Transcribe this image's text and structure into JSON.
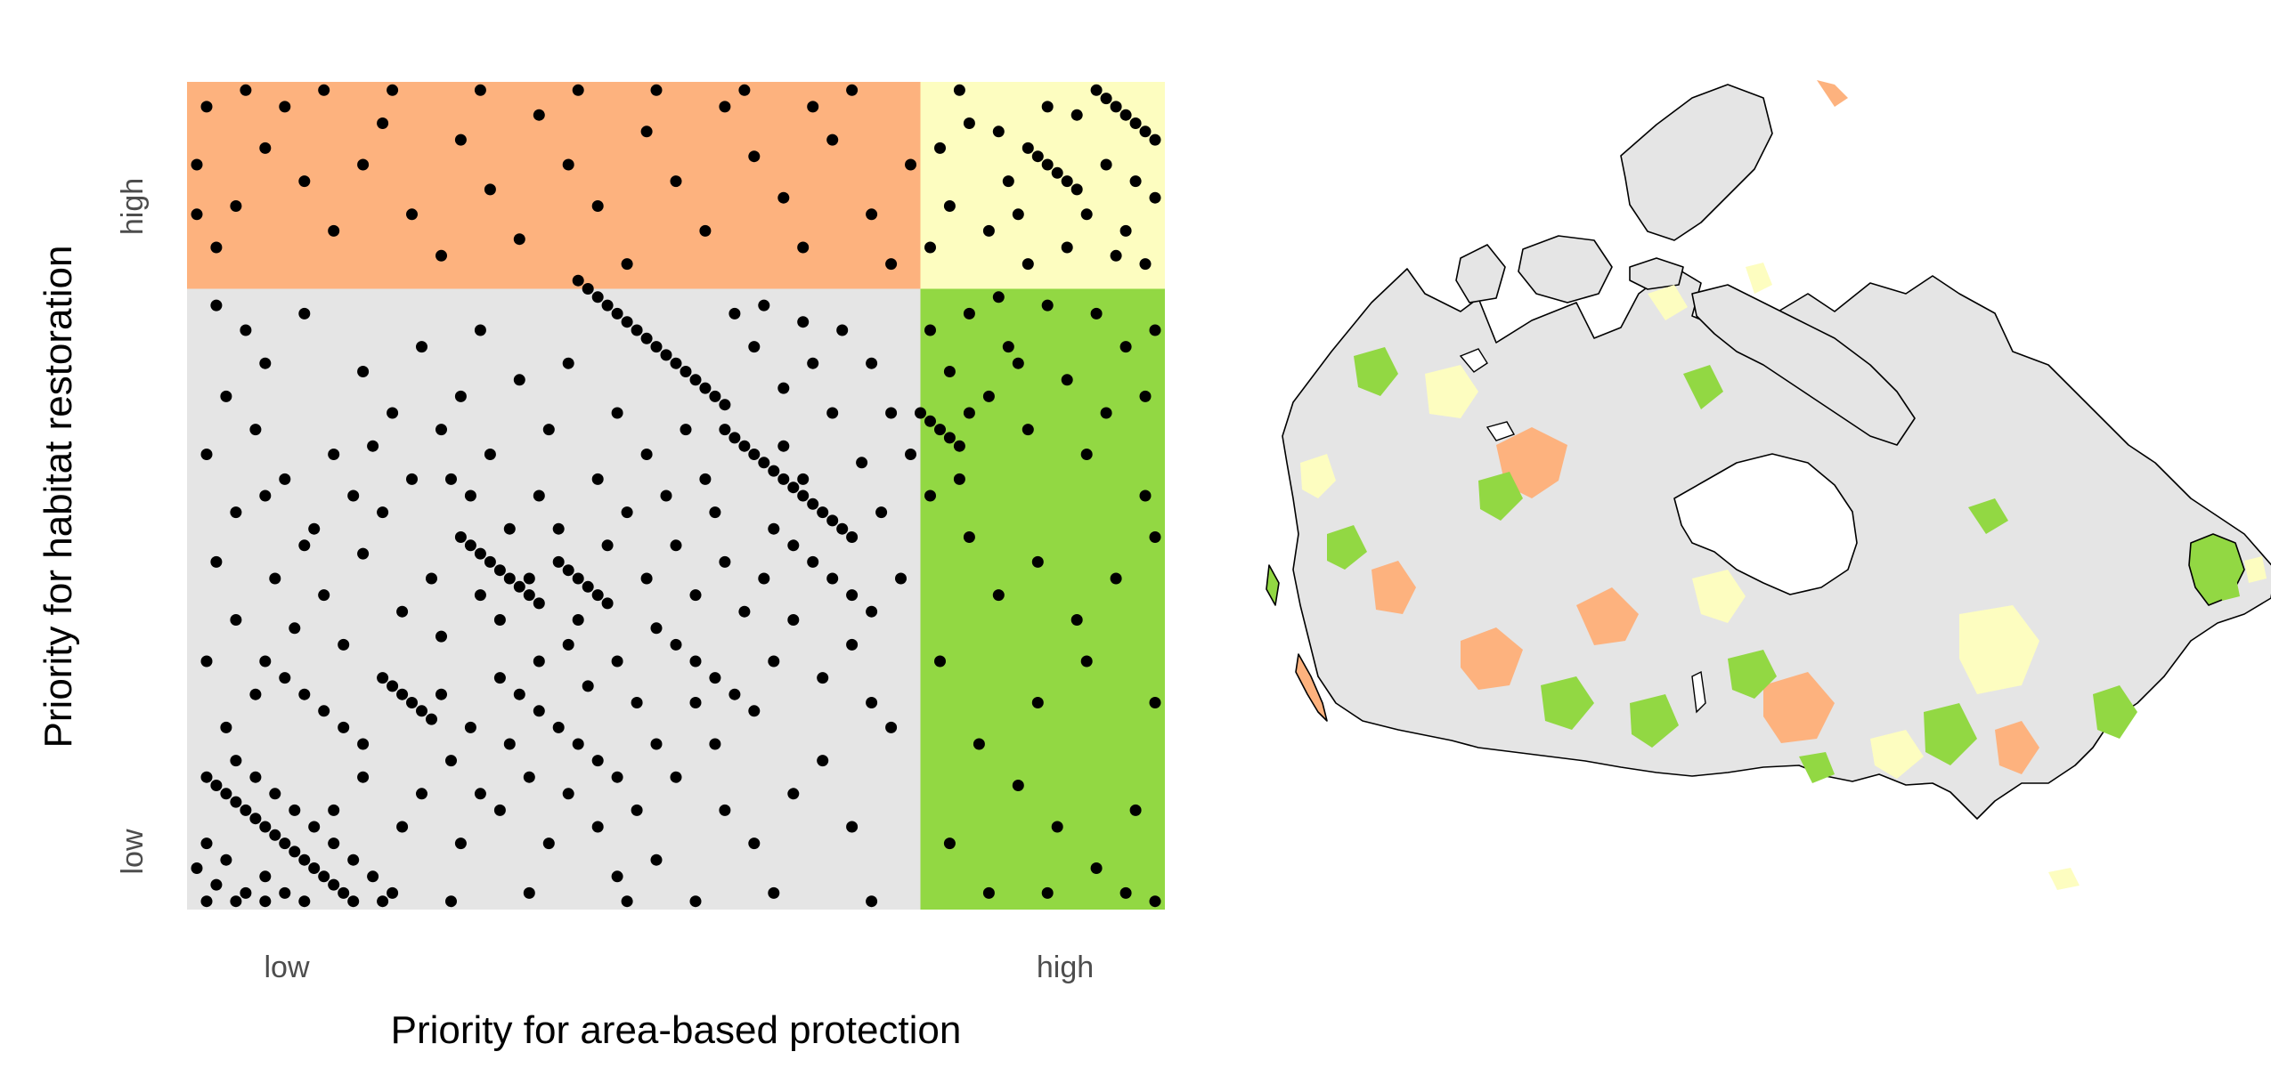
{
  "chart_data": {
    "type": "scatter",
    "title": "",
    "xlabel": "Priority for area-based protection",
    "ylabel": "Priority for habitat restoration",
    "x_tick_labels": [
      "low",
      "high"
    ],
    "y_tick_labels": [
      "low",
      "high"
    ],
    "xlim": [
      0,
      1
    ],
    "ylim": [
      0,
      1
    ],
    "x_threshold": 0.75,
    "y_threshold": 0.75,
    "legend": "none",
    "grid": false,
    "quadrants": [
      {
        "id": "high-restoration-low-protection",
        "color": "#FDB27E"
      },
      {
        "id": "high-restoration-high-protection",
        "color": "#FDFDC0"
      },
      {
        "id": "low-restoration-high-protection",
        "color": "#92D843"
      },
      {
        "id": "low-restoration-low-protection",
        "color": "#E5E5E5"
      }
    ],
    "point_color": "#000000",
    "points": [
      [
        0.02,
        0.16
      ],
      [
        0.03,
        0.15
      ],
      [
        0.04,
        0.14
      ],
      [
        0.05,
        0.13
      ],
      [
        0.06,
        0.12
      ],
      [
        0.07,
        0.11
      ],
      [
        0.08,
        0.1
      ],
      [
        0.09,
        0.09
      ],
      [
        0.1,
        0.08
      ],
      [
        0.11,
        0.07
      ],
      [
        0.12,
        0.06
      ],
      [
        0.13,
        0.05
      ],
      [
        0.14,
        0.04
      ],
      [
        0.15,
        0.03
      ],
      [
        0.16,
        0.02
      ],
      [
        0.17,
        0.01
      ],
      [
        0.05,
        0.18
      ],
      [
        0.07,
        0.16
      ],
      [
        0.09,
        0.14
      ],
      [
        0.11,
        0.12
      ],
      [
        0.13,
        0.1
      ],
      [
        0.15,
        0.08
      ],
      [
        0.17,
        0.06
      ],
      [
        0.19,
        0.04
      ],
      [
        0.21,
        0.02
      ],
      [
        0.01,
        0.05
      ],
      [
        0.02,
        0.08
      ],
      [
        0.03,
        0.03
      ],
      [
        0.04,
        0.06
      ],
      [
        0.06,
        0.02
      ],
      [
        0.08,
        0.04
      ],
      [
        0.1,
        0.02
      ],
      [
        0.02,
        0.01
      ],
      [
        0.05,
        0.01
      ],
      [
        0.08,
        0.01
      ],
      [
        0.12,
        0.01
      ],
      [
        0.2,
        0.01
      ],
      [
        0.27,
        0.01
      ],
      [
        0.35,
        0.02
      ],
      [
        0.45,
        0.01
      ],
      [
        0.52,
        0.01
      ],
      [
        0.6,
        0.02
      ],
      [
        0.7,
        0.01
      ],
      [
        0.4,
        0.76
      ],
      [
        0.41,
        0.75
      ],
      [
        0.42,
        0.74
      ],
      [
        0.43,
        0.73
      ],
      [
        0.44,
        0.72
      ],
      [
        0.45,
        0.71
      ],
      [
        0.46,
        0.7
      ],
      [
        0.47,
        0.69
      ],
      [
        0.48,
        0.68
      ],
      [
        0.49,
        0.67
      ],
      [
        0.5,
        0.66
      ],
      [
        0.51,
        0.65
      ],
      [
        0.52,
        0.64
      ],
      [
        0.53,
        0.63
      ],
      [
        0.54,
        0.62
      ],
      [
        0.55,
        0.61
      ],
      [
        0.55,
        0.58
      ],
      [
        0.56,
        0.57
      ],
      [
        0.57,
        0.56
      ],
      [
        0.58,
        0.55
      ],
      [
        0.59,
        0.54
      ],
      [
        0.6,
        0.53
      ],
      [
        0.61,
        0.52
      ],
      [
        0.62,
        0.51
      ],
      [
        0.63,
        0.5
      ],
      [
        0.64,
        0.49
      ],
      [
        0.65,
        0.48
      ],
      [
        0.66,
        0.47
      ],
      [
        0.67,
        0.46
      ],
      [
        0.68,
        0.45
      ],
      [
        0.28,
        0.45
      ],
      [
        0.29,
        0.44
      ],
      [
        0.3,
        0.43
      ],
      [
        0.31,
        0.42
      ],
      [
        0.32,
        0.41
      ],
      [
        0.33,
        0.4
      ],
      [
        0.34,
        0.39
      ],
      [
        0.35,
        0.38
      ],
      [
        0.36,
        0.37
      ],
      [
        0.2,
        0.28
      ],
      [
        0.21,
        0.27
      ],
      [
        0.22,
        0.26
      ],
      [
        0.23,
        0.25
      ],
      [
        0.24,
        0.24
      ],
      [
        0.25,
        0.23
      ],
      [
        0.38,
        0.42
      ],
      [
        0.39,
        0.41
      ],
      [
        0.4,
        0.4
      ],
      [
        0.41,
        0.39
      ],
      [
        0.42,
        0.38
      ],
      [
        0.43,
        0.37
      ],
      [
        0.08,
        0.3
      ],
      [
        0.1,
        0.28
      ],
      [
        0.12,
        0.26
      ],
      [
        0.14,
        0.24
      ],
      [
        0.16,
        0.22
      ],
      [
        0.18,
        0.2
      ],
      [
        0.34,
        0.26
      ],
      [
        0.36,
        0.24
      ],
      [
        0.38,
        0.22
      ],
      [
        0.4,
        0.2
      ],
      [
        0.42,
        0.18
      ],
      [
        0.44,
        0.16
      ],
      [
        0.6,
        0.46
      ],
      [
        0.62,
        0.44
      ],
      [
        0.64,
        0.42
      ],
      [
        0.66,
        0.4
      ],
      [
        0.68,
        0.38
      ],
      [
        0.7,
        0.36
      ],
      [
        0.48,
        0.34
      ],
      [
        0.5,
        0.32
      ],
      [
        0.52,
        0.3
      ],
      [
        0.54,
        0.28
      ],
      [
        0.56,
        0.26
      ],
      [
        0.86,
        0.92
      ],
      [
        0.87,
        0.91
      ],
      [
        0.88,
        0.9
      ],
      [
        0.89,
        0.89
      ],
      [
        0.9,
        0.88
      ],
      [
        0.91,
        0.87
      ],
      [
        0.93,
        0.99
      ],
      [
        0.94,
        0.98
      ],
      [
        0.95,
        0.97
      ],
      [
        0.96,
        0.96
      ],
      [
        0.97,
        0.95
      ],
      [
        0.98,
        0.94
      ],
      [
        0.99,
        0.93
      ],
      [
        0.75,
        0.6
      ],
      [
        0.76,
        0.59
      ],
      [
        0.77,
        0.58
      ],
      [
        0.78,
        0.57
      ],
      [
        0.79,
        0.56
      ],
      [
        0.25,
        0.4
      ],
      [
        0.3,
        0.38
      ],
      [
        0.33,
        0.46
      ],
      [
        0.36,
        0.5
      ],
      [
        0.27,
        0.52
      ],
      [
        0.31,
        0.55
      ],
      [
        0.2,
        0.48
      ],
      [
        0.18,
        0.43
      ],
      [
        0.22,
        0.36
      ],
      [
        0.26,
        0.33
      ],
      [
        0.14,
        0.38
      ],
      [
        0.12,
        0.44
      ],
      [
        0.09,
        0.4
      ],
      [
        0.05,
        0.35
      ],
      [
        0.03,
        0.42
      ],
      [
        0.02,
        0.55
      ],
      [
        0.04,
        0.62
      ],
      [
        0.07,
        0.58
      ],
      [
        0.1,
        0.52
      ],
      [
        0.15,
        0.55
      ],
      [
        0.08,
        0.66
      ],
      [
        0.06,
        0.7
      ],
      [
        0.03,
        0.73
      ],
      [
        0.12,
        0.72
      ],
      [
        0.18,
        0.65
      ],
      [
        0.21,
        0.6
      ],
      [
        0.24,
        0.68
      ],
      [
        0.28,
        0.62
      ],
      [
        0.3,
        0.7
      ],
      [
        0.34,
        0.64
      ],
      [
        0.37,
        0.58
      ],
      [
        0.39,
        0.66
      ],
      [
        0.44,
        0.6
      ],
      [
        0.47,
        0.55
      ],
      [
        0.49,
        0.5
      ],
      [
        0.51,
        0.58
      ],
      [
        0.53,
        0.52
      ],
      [
        0.45,
        0.48
      ],
      [
        0.42,
        0.52
      ],
      [
        0.38,
        0.46
      ],
      [
        0.44,
        0.3
      ],
      [
        0.46,
        0.25
      ],
      [
        0.48,
        0.2
      ],
      [
        0.41,
        0.27
      ],
      [
        0.39,
        0.32
      ],
      [
        0.36,
        0.3
      ],
      [
        0.32,
        0.28
      ],
      [
        0.29,
        0.22
      ],
      [
        0.27,
        0.18
      ],
      [
        0.24,
        0.14
      ],
      [
        0.22,
        0.1
      ],
      [
        0.28,
        0.08
      ],
      [
        0.32,
        0.12
      ],
      [
        0.35,
        0.16
      ],
      [
        0.37,
        0.08
      ],
      [
        0.42,
        0.1
      ],
      [
        0.46,
        0.12
      ],
      [
        0.5,
        0.16
      ],
      [
        0.54,
        0.2
      ],
      [
        0.58,
        0.24
      ],
      [
        0.6,
        0.3
      ],
      [
        0.62,
        0.35
      ],
      [
        0.65,
        0.28
      ],
      [
        0.68,
        0.32
      ],
      [
        0.7,
        0.25
      ],
      [
        0.72,
        0.22
      ],
      [
        0.73,
        0.4
      ],
      [
        0.71,
        0.48
      ],
      [
        0.69,
        0.54
      ],
      [
        0.66,
        0.6
      ],
      [
        0.64,
        0.66
      ],
      [
        0.61,
        0.63
      ],
      [
        0.58,
        0.68
      ],
      [
        0.56,
        0.72
      ],
      [
        0.59,
        0.73
      ],
      [
        0.63,
        0.71
      ],
      [
        0.67,
        0.7
      ],
      [
        0.7,
        0.66
      ],
      [
        0.72,
        0.6
      ],
      [
        0.74,
        0.55
      ],
      [
        0.15,
        0.12
      ],
      [
        0.18,
        0.16
      ],
      [
        0.16,
        0.32
      ],
      [
        0.11,
        0.34
      ],
      [
        0.07,
        0.26
      ],
      [
        0.04,
        0.22
      ],
      [
        0.02,
        0.3
      ],
      [
        0.05,
        0.48
      ],
      [
        0.08,
        0.5
      ],
      [
        0.13,
        0.46
      ],
      [
        0.17,
        0.5
      ],
      [
        0.19,
        0.56
      ],
      [
        0.23,
        0.52
      ],
      [
        0.26,
        0.58
      ],
      [
        0.29,
        0.5
      ],
      [
        0.32,
        0.35
      ],
      [
        0.35,
        0.4
      ],
      [
        0.4,
        0.35
      ],
      [
        0.43,
        0.44
      ],
      [
        0.47,
        0.4
      ],
      [
        0.5,
        0.44
      ],
      [
        0.52,
        0.38
      ],
      [
        0.55,
        0.42
      ],
      [
        0.57,
        0.36
      ],
      [
        0.59,
        0.4
      ],
      [
        0.61,
        0.56
      ],
      [
        0.63,
        0.52
      ],
      [
        0.54,
        0.48
      ],
      [
        0.52,
        0.25
      ],
      [
        0.55,
        0.12
      ],
      [
        0.58,
        0.08
      ],
      [
        0.62,
        0.14
      ],
      [
        0.65,
        0.18
      ],
      [
        0.68,
        0.1
      ],
      [
        0.48,
        0.06
      ],
      [
        0.44,
        0.04
      ],
      [
        0.39,
        0.14
      ],
      [
        0.33,
        0.2
      ],
      [
        0.3,
        0.14
      ],
      [
        0.26,
        0.26
      ],
      [
        0.03,
        0.8
      ],
      [
        0.05,
        0.85
      ],
      [
        0.08,
        0.92
      ],
      [
        0.1,
        0.97
      ],
      [
        0.12,
        0.88
      ],
      [
        0.15,
        0.82
      ],
      [
        0.18,
        0.9
      ],
      [
        0.2,
        0.95
      ],
      [
        0.23,
        0.84
      ],
      [
        0.26,
        0.79
      ],
      [
        0.28,
        0.93
      ],
      [
        0.31,
        0.87
      ],
      [
        0.34,
        0.81
      ],
      [
        0.36,
        0.96
      ],
      [
        0.39,
        0.9
      ],
      [
        0.42,
        0.85
      ],
      [
        0.45,
        0.78
      ],
      [
        0.47,
        0.94
      ],
      [
        0.5,
        0.88
      ],
      [
        0.53,
        0.82
      ],
      [
        0.55,
        0.97
      ],
      [
        0.58,
        0.91
      ],
      [
        0.61,
        0.86
      ],
      [
        0.63,
        0.8
      ],
      [
        0.66,
        0.93
      ],
      [
        0.68,
        0.99
      ],
      [
        0.7,
        0.84
      ],
      [
        0.72,
        0.78
      ],
      [
        0.74,
        0.9
      ],
      [
        0.02,
        0.97
      ],
      [
        0.06,
        0.99
      ],
      [
        0.14,
        0.99
      ],
      [
        0.21,
        0.99
      ],
      [
        0.3,
        0.99
      ],
      [
        0.4,
        0.99
      ],
      [
        0.48,
        0.99
      ],
      [
        0.57,
        0.99
      ],
      [
        0.64,
        0.97
      ],
      [
        0.01,
        0.9
      ],
      [
        0.01,
        0.84
      ],
      [
        0.76,
        0.8
      ],
      [
        0.78,
        0.85
      ],
      [
        0.8,
        0.95
      ],
      [
        0.82,
        0.82
      ],
      [
        0.84,
        0.88
      ],
      [
        0.86,
        0.78
      ],
      [
        0.88,
        0.97
      ],
      [
        0.9,
        0.8
      ],
      [
        0.92,
        0.84
      ],
      [
        0.94,
        0.9
      ],
      [
        0.96,
        0.82
      ],
      [
        0.98,
        0.78
      ],
      [
        0.99,
        0.86
      ],
      [
        0.77,
        0.92
      ],
      [
        0.79,
        0.99
      ],
      [
        0.83,
        0.94
      ],
      [
        0.85,
        0.84
      ],
      [
        0.91,
        0.96
      ],
      [
        0.95,
        0.79
      ],
      [
        0.97,
        0.88
      ],
      [
        0.76,
        0.7
      ],
      [
        0.78,
        0.65
      ],
      [
        0.8,
        0.72
      ],
      [
        0.82,
        0.62
      ],
      [
        0.84,
        0.68
      ],
      [
        0.86,
        0.58
      ],
      [
        0.88,
        0.73
      ],
      [
        0.9,
        0.64
      ],
      [
        0.92,
        0.55
      ],
      [
        0.94,
        0.6
      ],
      [
        0.96,
        0.68
      ],
      [
        0.98,
        0.5
      ],
      [
        0.8,
        0.45
      ],
      [
        0.83,
        0.38
      ],
      [
        0.87,
        0.42
      ],
      [
        0.91,
        0.35
      ],
      [
        0.95,
        0.4
      ],
      [
        0.99,
        0.45
      ],
      [
        0.77,
        0.3
      ],
      [
        0.81,
        0.2
      ],
      [
        0.85,
        0.15
      ],
      [
        0.89,
        0.1
      ],
      [
        0.93,
        0.05
      ],
      [
        0.97,
        0.12
      ],
      [
        0.99,
        0.25
      ],
      [
        0.78,
        0.08
      ],
      [
        0.82,
        0.02
      ],
      [
        0.88,
        0.02
      ],
      [
        0.96,
        0.02
      ],
      [
        0.99,
        0.01
      ],
      [
        0.76,
        0.5
      ],
      [
        0.79,
        0.52
      ],
      [
        0.93,
        0.72
      ],
      [
        0.85,
        0.66
      ],
      [
        0.99,
        0.7
      ],
      [
        0.92,
        0.3
      ],
      [
        0.87,
        0.25
      ],
      [
        0.8,
        0.6
      ],
      [
        0.83,
        0.74
      ],
      [
        0.98,
        0.62
      ]
    ]
  },
  "map_panel": {
    "region_colors": [
      "#FDB27E",
      "#FDFDC0",
      "#92D843",
      "#E5E5E5"
    ],
    "outline_color": "#000000"
  }
}
